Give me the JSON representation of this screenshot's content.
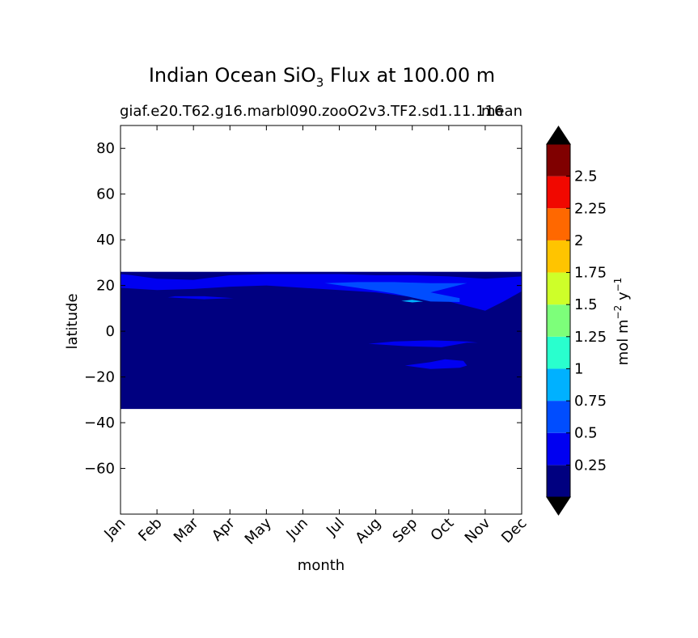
{
  "chart_data": {
    "type": "heatmap",
    "title": "Indian Ocean SiO",
    "title_subscript": "3",
    "title_suffix": " Flux at 100.00 m",
    "subtitle_left": "giaf.e20.T62.g16.marbl090.zooO2v3.TF2.sd1.11.116",
    "subtitle_right": "mean",
    "xlabel": "month",
    "ylabel": "latitude",
    "x_categories": [
      "Jan",
      "Feb",
      "Mar",
      "Apr",
      "May",
      "Jun",
      "Jul",
      "Aug",
      "Sep",
      "Oct",
      "Nov",
      "Dec"
    ],
    "xlim": [
      0,
      11
    ],
    "ylim": [
      -80,
      90
    ],
    "y_ticks": [
      80,
      60,
      40,
      20,
      0,
      -20,
      -40,
      -60
    ],
    "y_tick_labels": [
      "80",
      "60",
      "40",
      "20",
      "0",
      "−20",
      "−40",
      "−60"
    ],
    "data_lat_range": [
      -34,
      26
    ],
    "colorbar": {
      "label_main": "mol m",
      "label_exp1": "−2",
      "label_mid": " y",
      "label_exp2": "−1",
      "levels": [
        0,
        0.25,
        0.5,
        0.75,
        1,
        1.25,
        1.5,
        1.75,
        2,
        2.25,
        2.5,
        2.75
      ],
      "tick_labels": [
        "0.25",
        "0.5",
        "0.75",
        "1",
        "1.25",
        "1.5",
        "1.75",
        "2",
        "2.25",
        "2.5"
      ],
      "colors": [
        "#000080",
        "#0000f1",
        "#004dff",
        "#00b1ff",
        "#29ffce",
        "#7dff7a",
        "#ceff29",
        "#ffc400",
        "#ff6800",
        "#f10800",
        "#800000"
      ],
      "extend": "both",
      "extend_color": "#000000"
    },
    "regions": [
      {
        "level": 1,
        "polygon": [
          [
            0,
            25
          ],
          [
            0,
            19
          ],
          [
            1,
            18
          ],
          [
            2,
            18.5
          ],
          [
            3,
            19.5
          ],
          [
            4,
            20
          ],
          [
            5,
            19
          ],
          [
            6,
            18
          ],
          [
            7,
            17
          ],
          [
            8,
            15
          ],
          [
            9,
            13
          ],
          [
            10,
            9
          ],
          [
            10.5,
            13
          ],
          [
            11,
            17.5
          ],
          [
            11,
            24
          ],
          [
            10,
            23
          ],
          [
            9,
            24
          ],
          [
            8,
            24.5
          ],
          [
            7,
            24.5
          ],
          [
            6,
            25
          ],
          [
            5,
            25
          ],
          [
            4,
            25
          ],
          [
            3,
            24.5
          ],
          [
            2,
            22.5
          ],
          [
            1,
            23
          ],
          [
            0.3,
            24.5
          ]
        ]
      },
      {
        "level": 1,
        "polygon": [
          [
            1.3,
            14.8
          ],
          [
            2.3,
            14
          ],
          [
            3.1,
            14.5
          ],
          [
            2.3,
            15.3
          ],
          [
            1.5,
            15.3
          ]
        ]
      },
      {
        "level": 1,
        "polygon": [
          [
            6.8,
            -5.5
          ],
          [
            7.8,
            -6.5
          ],
          [
            8.8,
            -7
          ],
          [
            9.5,
            -5
          ],
          [
            9.8,
            -5
          ],
          [
            9.5,
            -4.5
          ],
          [
            8.5,
            -4
          ],
          [
            7.5,
            -4.5
          ]
        ]
      },
      {
        "level": 1,
        "polygon": [
          [
            7.8,
            -15
          ],
          [
            8.5,
            -16.5
          ],
          [
            9.3,
            -16
          ],
          [
            9.5,
            -15
          ],
          [
            9.4,
            -13
          ],
          [
            8.9,
            -12.3
          ],
          [
            8.5,
            -13.5
          ]
        ]
      },
      {
        "level": 2,
        "polygon": [
          [
            5.6,
            21
          ],
          [
            6.5,
            19
          ],
          [
            7.5,
            16.5
          ],
          [
            8.5,
            13
          ],
          [
            9.3,
            12.8
          ],
          [
            9.3,
            14.5
          ],
          [
            8.5,
            17
          ],
          [
            9.5,
            21
          ],
          [
            8.5,
            21
          ],
          [
            7.5,
            21.5
          ],
          [
            6.5,
            21.5
          ]
        ]
      },
      {
        "level": 3,
        "polygon": [
          [
            7.7,
            13.2
          ],
          [
            8.0,
            12.6
          ],
          [
            8.3,
            13
          ],
          [
            8.0,
            13.8
          ]
        ]
      }
    ]
  }
}
